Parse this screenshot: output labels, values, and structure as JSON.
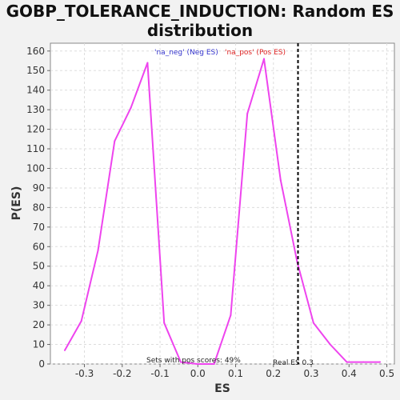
{
  "chart_data": {
    "type": "line",
    "title": "GOBP_TOLERANCE_INDUCTION: Random ES distribution",
    "xlabel": "ES",
    "ylabel": "P(ES)",
    "xlim": [
      -0.39,
      0.52
    ],
    "ylim": [
      0,
      164
    ],
    "x_ticks": [
      -0.3,
      -0.2,
      -0.1,
      0.0,
      0.1,
      0.2,
      0.3,
      0.4,
      0.5
    ],
    "x_tick_labels": [
      "-0.3",
      "-0.2",
      "-0.1",
      "0.0",
      "0.1",
      "0.2",
      "0.3",
      "0.4",
      "0.5"
    ],
    "y_ticks": [
      0,
      10,
      20,
      30,
      40,
      50,
      60,
      70,
      80,
      90,
      100,
      110,
      120,
      130,
      140,
      150,
      160
    ],
    "grid": true,
    "series": [
      {
        "color": "#ee44ee",
        "x": [
          -0.352,
          -0.308,
          -0.264,
          -0.22,
          -0.177,
          -0.133,
          -0.089,
          -0.045,
          -0.001,
          0.043,
          0.087,
          0.131,
          0.175,
          0.219,
          0.263,
          0.306,
          0.35,
          0.394,
          0.438,
          0.482
        ],
        "y": [
          7,
          22,
          58,
          114,
          131,
          154,
          21,
          1,
          0,
          0,
          25,
          128,
          156,
          94,
          52,
          21,
          10,
          1,
          1,
          1
        ]
      }
    ],
    "vline": {
      "x": 0.265,
      "color": "#000000",
      "style": "dashed"
    },
    "legend": {
      "neg_label": "'na_neg' (Neg ES)",
      "neg_color": "#3333cc",
      "pos_label": "'na_pos' (Pos ES)",
      "pos_color": "#dd2222",
      "placement": "top-center"
    },
    "annotations": {
      "pos_scores": "Sets with pos scores: 49%",
      "real_es": "Real ES 0.3"
    }
  }
}
